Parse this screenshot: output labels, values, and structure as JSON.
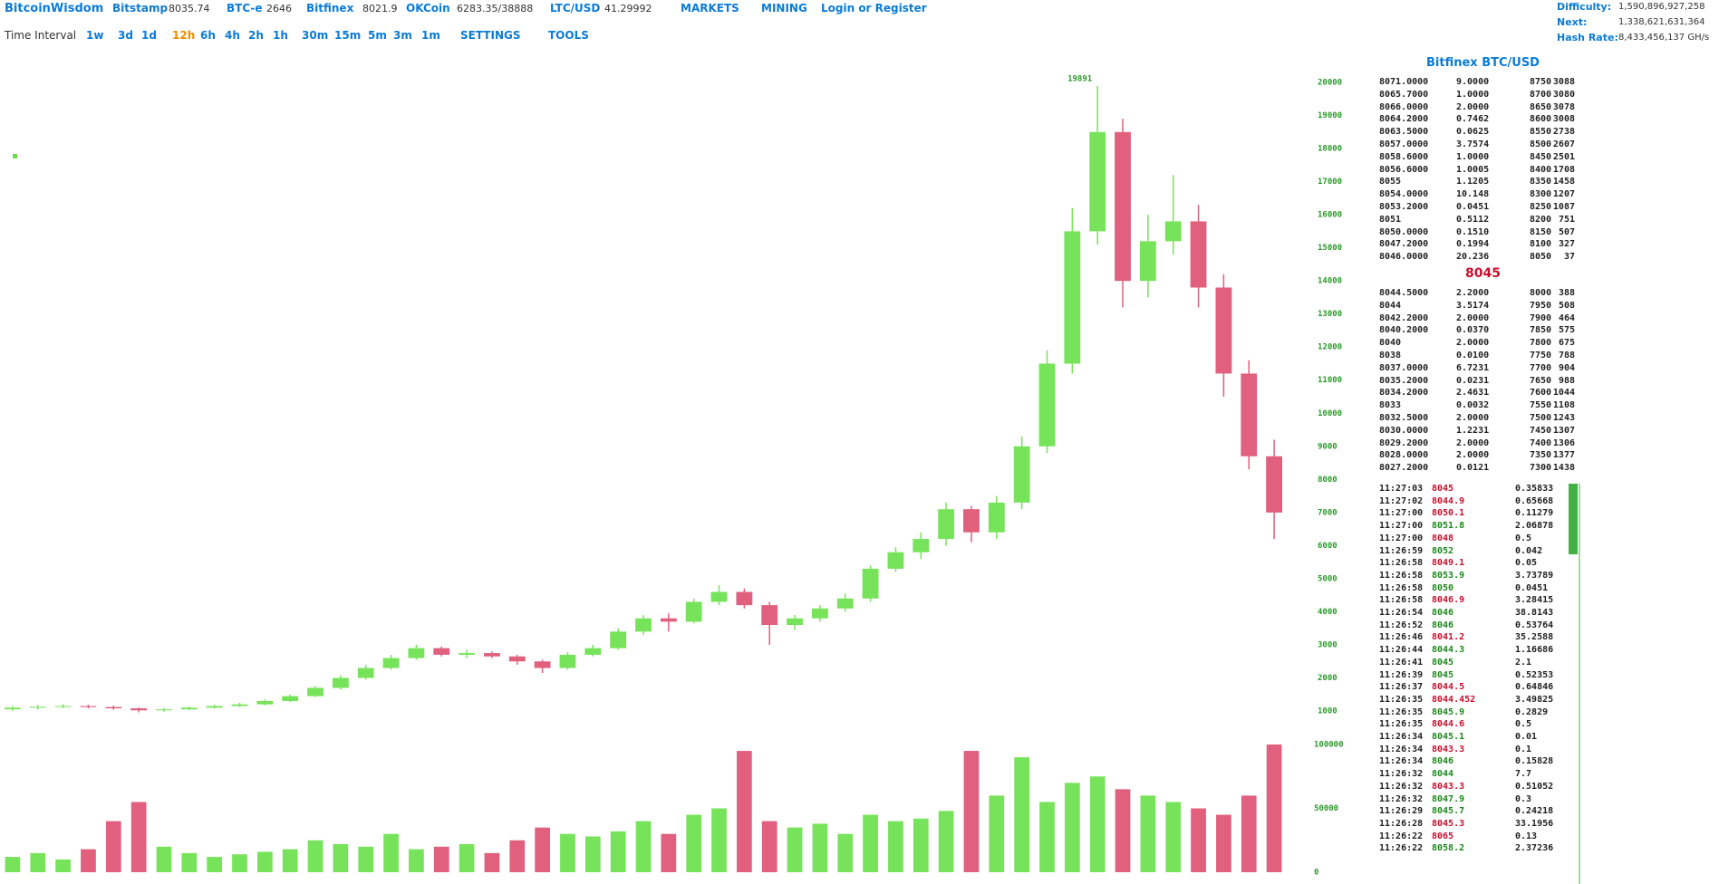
{
  "header": {
    "brand": "BitcoinWisdom",
    "tickers": [
      {
        "name": "Bitstamp",
        "price": "8035.74"
      },
      {
        "name": "BTC-e",
        "price": "2646"
      },
      {
        "name": "Bitfinex",
        "price": "8021.9"
      },
      {
        "name": "OKCoin",
        "price": "6283.35/38888"
      },
      {
        "name": "LTC/USD",
        "price": "41.29992"
      }
    ],
    "menus": [
      "MARKETS",
      "MINING"
    ],
    "login": "Login or Register"
  },
  "stats": [
    {
      "label": "Difficulty:",
      "value": "1,590,896,927,258"
    },
    {
      "label": "Next:",
      "value": "1,338,621,631,364"
    },
    {
      "label": "Hash Rate:",
      "value": "8,433,456,137 GH/s"
    }
  ],
  "toolbar": {
    "label": "Time Interval",
    "intervals": [
      "1w",
      "3d",
      "1d",
      "12h",
      "6h",
      "4h",
      "2h",
      "1h",
      "30m",
      "15m",
      "5m",
      "3m",
      "1m"
    ],
    "active": 3,
    "menus": [
      "SETTINGS",
      "TOOLS"
    ]
  },
  "orderbook": {
    "title": "Bitfinex BTC/USD",
    "asks": [
      [
        "8071.0000",
        "9.0000",
        "8750",
        "3088"
      ],
      [
        "8065.7000",
        "1.0000",
        "8700",
        "3080"
      ],
      [
        "8066.0000",
        "2.0000",
        "8650",
        "3078"
      ],
      [
        "8064.2000",
        "0.7462",
        "8600",
        "3008"
      ],
      [
        "8063.5000",
        "0.0625",
        "8550",
        "2738"
      ],
      [
        "8057.0000",
        "3.7574",
        "8500",
        "2607"
      ],
      [
        "8058.6000",
        "1.0000",
        "8450",
        "2501"
      ],
      [
        "8056.6000",
        "1.0005",
        "8400",
        "1708"
      ],
      [
        "8055",
        "1.1205",
        "8350",
        "1458"
      ],
      [
        "8054.0000",
        "10.148",
        "8300",
        "1207"
      ],
      [
        "8053.2000",
        "0.0451",
        "8250",
        "1087"
      ],
      [
        "8051",
        "0.5112",
        "8200",
        "751"
      ],
      [
        "8050.0000",
        "0.1510",
        "8150",
        "507"
      ],
      [
        "8047.2000",
        "0.1994",
        "8100",
        "327"
      ],
      [
        "8046.0000",
        "20.236",
        "8050",
        "37"
      ]
    ],
    "last": "8045",
    "bids": [
      [
        "8044.5000",
        "2.2000",
        "8000",
        "388"
      ],
      [
        "8044",
        "3.5174",
        "7950",
        "508"
      ],
      [
        "8042.2000",
        "2.0000",
        "7900",
        "464"
      ],
      [
        "8040.2000",
        "0.0370",
        "7850",
        "575"
      ],
      [
        "8040",
        "2.0000",
        "7800",
        "675"
      ],
      [
        "8038",
        "0.0100",
        "7750",
        "788"
      ],
      [
        "8037.0000",
        "6.7231",
        "7700",
        "904"
      ],
      [
        "8035.2000",
        "0.0231",
        "7650",
        "988"
      ],
      [
        "8034.2000",
        "2.4631",
        "7600",
        "1044"
      ],
      [
        "8033",
        "0.0032",
        "7550",
        "1108"
      ],
      [
        "8032.5000",
        "2.0000",
        "7500",
        "1243"
      ],
      [
        "8030.0000",
        "1.2231",
        "7450",
        "1307"
      ],
      [
        "8029.2000",
        "2.0000",
        "7400",
        "1306"
      ],
      [
        "8028.0000",
        "2.0000",
        "7350",
        "1377"
      ],
      [
        "8027.2000",
        "0.0121",
        "7300",
        "1438"
      ]
    ]
  },
  "trades": [
    {
      "time": "11:27:03",
      "price": "8045",
      "amount": "0.35833",
      "color": "#c8102e"
    },
    {
      "time": "11:27:02",
      "price": "8044.9",
      "amount": "0.65668",
      "color": "#c8102e"
    },
    {
      "time": "11:27:00",
      "price": "8050.1",
      "amount": "0.11279",
      "color": "#c8102e"
    },
    {
      "time": "11:27:00",
      "price": "8051.8",
      "amount": "2.06878",
      "color": "#1a8a1a"
    },
    {
      "time": "11:27:00",
      "price": "8048",
      "amount": "0.5",
      "color": "#c8102e"
    },
    {
      "time": "11:26:59",
      "price": "8052",
      "amount": "0.042",
      "color": "#1a8a1a"
    },
    {
      "time": "11:26:58",
      "price": "8049.1",
      "amount": "0.05",
      "color": "#c8102e"
    },
    {
      "time": "11:26:58",
      "price": "8053.9",
      "amount": "3.73789",
      "color": "#1a8a1a"
    },
    {
      "time": "11:26:58",
      "price": "8050",
      "amount": "0.0451",
      "color": "#1a8a1a"
    },
    {
      "time": "11:26:58",
      "price": "8046.9",
      "amount": "3.28415",
      "color": "#c8102e"
    },
    {
      "time": "11:26:54",
      "price": "8046",
      "amount": "38.8143",
      "color": "#1a8a1a"
    },
    {
      "time": "11:26:52",
      "price": "8046",
      "amount": "0.53764",
      "color": "#1a8a1a"
    },
    {
      "time": "11:26:46",
      "price": "8041.2",
      "amount": "35.2588",
      "color": "#c8102e"
    },
    {
      "time": "11:26:44",
      "price": "8044.3",
      "amount": "1.16686",
      "color": "#1a8a1a"
    },
    {
      "time": "11:26:41",
      "price": "8045",
      "amount": "2.1",
      "color": "#1a8a1a"
    },
    {
      "time": "11:26:39",
      "price": "8045",
      "amount": "0.52353",
      "color": "#1a8a1a"
    },
    {
      "time": "11:26:37",
      "price": "8044.5",
      "amount": "0.64846",
      "color": "#c8102e"
    },
    {
      "time": "11:26:35",
      "price": "8044.452",
      "amount": "3.49825",
      "color": "#c8102e"
    },
    {
      "time": "11:26:35",
      "price": "8045.9",
      "amount": "0.2829",
      "color": "#1a8a1a"
    },
    {
      "time": "11:26:35",
      "price": "8044.6",
      "amount": "0.5",
      "color": "#c8102e"
    },
    {
      "time": "11:26:34",
      "price": "8045.1",
      "amount": "0.01",
      "color": "#1a8a1a"
    },
    {
      "time": "11:26:34",
      "price": "8043.3",
      "amount": "0.1",
      "color": "#c8102e"
    },
    {
      "time": "11:26:34",
      "price": "8046",
      "amount": "0.15828",
      "color": "#1a8a1a"
    },
    {
      "time": "11:26:32",
      "price": "8044",
      "amount": "7.7",
      "color": "#1a8a1a"
    },
    {
      "time": "11:26:32",
      "price": "8043.3",
      "amount": "0.51052",
      "color": "#c8102e"
    },
    {
      "time": "11:26:32",
      "price": "8047.9",
      "amount": "0.3",
      "color": "#1a8a1a"
    },
    {
      "time": "11:26:29",
      "price": "8045.7",
      "amount": "0.24218",
      "color": "#1a8a1a"
    },
    {
      "time": "11:26:28",
      "price": "8045.3",
      "amount": "33.1956",
      "color": "#c8102e"
    },
    {
      "time": "11:26:22",
      "price": "8065",
      "amount": "0.13",
      "color": "#c8102e"
    },
    {
      "time": "11:26:22",
      "price": "8058.2",
      "amount": "2.37236",
      "color": "#1a8a1a"
    }
  ],
  "chart_data": {
    "type": "candlestick",
    "open": [
      1050,
      1100,
      1130,
      1150,
      1120,
      1080,
      1020,
      1050,
      1100,
      1150,
      1200,
      1300,
      1450,
      1700,
      2000,
      2300,
      2600,
      2900,
      2700,
      2750,
      2650,
      2500,
      2300,
      2700,
      2900,
      3400,
      3800,
      3700,
      4300,
      4600,
      4200,
      3600,
      3800,
      4100,
      4400,
      5300,
      5800,
      6200,
      7100,
      6400,
      7300,
      9000,
      11500,
      15500,
      18500,
      14000,
      15200,
      15800,
      13800,
      11200,
      8700
    ],
    "high": [
      1150,
      1180,
      1200,
      1190,
      1160,
      1110,
      1090,
      1140,
      1190,
      1250,
      1350,
      1500,
      1760,
      2080,
      2400,
      2700,
      3000,
      2950,
      2850,
      2800,
      2700,
      2550,
      2780,
      3000,
      3500,
      3900,
      3950,
      4400,
      4800,
      4700,
      4300,
      3900,
      4200,
      4550,
      5400,
      5950,
      6400,
      7300,
      7200,
      7500,
      9300,
      11900,
      16200,
      19891,
      18900,
      16000,
      17200,
      16300,
      14200,
      11600,
      9200
    ],
    "low": [
      1000,
      1040,
      1090,
      1080,
      1040,
      960,
      980,
      1020,
      1070,
      1120,
      1170,
      1270,
      1420,
      1650,
      1950,
      2250,
      2550,
      2650,
      2600,
      2600,
      2400,
      2150,
      2250,
      2650,
      2850,
      3300,
      3400,
      3650,
      4200,
      4100,
      3000,
      3450,
      3700,
      4000,
      4300,
      5200,
      5600,
      6000,
      6100,
      6200,
      7100,
      8800,
      11200,
      15100,
      13200,
      13500,
      14800,
      13200,
      10500,
      8300,
      6200
    ],
    "close": [
      1100,
      1130,
      1150,
      1120,
      1080,
      1020,
      1050,
      1100,
      1150,
      1200,
      1300,
      1450,
      1700,
      2000,
      2300,
      2600,
      2900,
      2700,
      2750,
      2650,
      2500,
      2300,
      2700,
      2900,
      3400,
      3800,
      3700,
      4300,
      4600,
      4200,
      3600,
      3800,
      4100,
      4400,
      5300,
      5800,
      6200,
      7100,
      6400,
      7300,
      9000,
      11500,
      15500,
      18500,
      14000,
      15200,
      15800,
      13800,
      11200,
      8700,
      7000
    ],
    "volume": [
      12000,
      15000,
      10000,
      18000,
      40000,
      55000,
      20000,
      15000,
      12000,
      14000,
      16000,
      18000,
      25000,
      22000,
      20000,
      30000,
      18000,
      20000,
      22000,
      15000,
      25000,
      35000,
      30000,
      28000,
      32000,
      40000,
      30000,
      45000,
      50000,
      95000,
      40000,
      35000,
      38000,
      30000,
      45000,
      40000,
      42000,
      48000,
      95000,
      60000,
      90000,
      55000,
      70000,
      75000,
      65000,
      60000,
      55000,
      50000,
      45000,
      60000,
      100000
    ],
    "up_color": "#77e35a",
    "down_color": "#e0607e",
    "ylim": [
      1000,
      20000
    ],
    "yticks": [
      1000,
      2000,
      3000,
      4000,
      5000,
      6000,
      7000,
      8000,
      9000,
      10000,
      11000,
      12000,
      13000,
      14000,
      15000,
      16000,
      17000,
      18000,
      19000,
      20000
    ],
    "vlim": [
      0,
      100000
    ],
    "vticks": [
      0,
      50000,
      100000
    ],
    "grid": false
  }
}
